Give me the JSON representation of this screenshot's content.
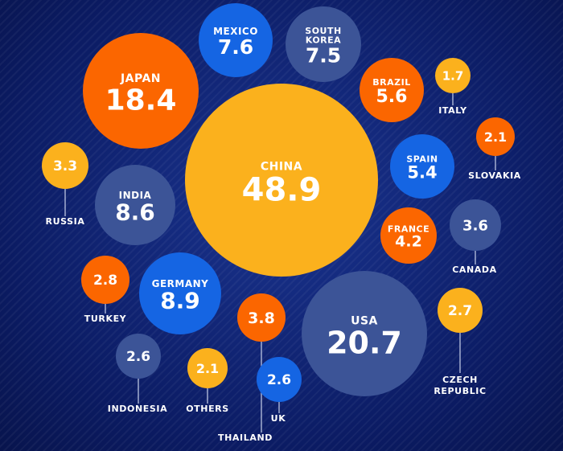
{
  "chart_data": {
    "type": "bubble",
    "title": "",
    "unit": "",
    "colors": {
      "orange": "#fb6600",
      "yellow": "#fbb11d",
      "blue": "#1565e3",
      "slate": "#3c5497",
      "label_outside": "#ffffff",
      "connector": "#c9d2ea"
    },
    "items": [
      {
        "name": "CHINA",
        "value": 48.9,
        "color": "yellow"
      },
      {
        "name": "USA",
        "value": 20.7,
        "color": "slate"
      },
      {
        "name": "JAPAN",
        "value": 18.4,
        "color": "orange"
      },
      {
        "name": "GERMANY",
        "value": 8.9,
        "color": "blue"
      },
      {
        "name": "INDIA",
        "value": 8.6,
        "color": "slate"
      },
      {
        "name": "MEXICO",
        "value": 7.6,
        "color": "blue"
      },
      {
        "name": "SOUTH KOREA",
        "value": 7.5,
        "color": "slate"
      },
      {
        "name": "BRAZIL",
        "value": 5.6,
        "color": "orange"
      },
      {
        "name": "SPAIN",
        "value": 5.4,
        "color": "blue"
      },
      {
        "name": "FRANCE",
        "value": 4.2,
        "color": "orange"
      },
      {
        "name": "THAILAND",
        "value": 3.8,
        "color": "orange"
      },
      {
        "name": "CANADA",
        "value": 3.6,
        "color": "slate"
      },
      {
        "name": "RUSSIA",
        "value": 3.3,
        "color": "yellow"
      },
      {
        "name": "TURKEY",
        "value": 2.8,
        "color": "orange"
      },
      {
        "name": "CZECH REPUBLIC",
        "value": 2.7,
        "color": "yellow"
      },
      {
        "name": "INDONESIA",
        "value": 2.6,
        "color": "slate"
      },
      {
        "name": "UK",
        "value": 2.6,
        "color": "blue"
      },
      {
        "name": "SLOVAKIA",
        "value": 2.1,
        "color": "orange"
      },
      {
        "name": "OTHERS",
        "value": 2.1,
        "color": "yellow"
      },
      {
        "name": "ITALY",
        "value": 1.7,
        "color": "yellow"
      }
    ]
  }
}
